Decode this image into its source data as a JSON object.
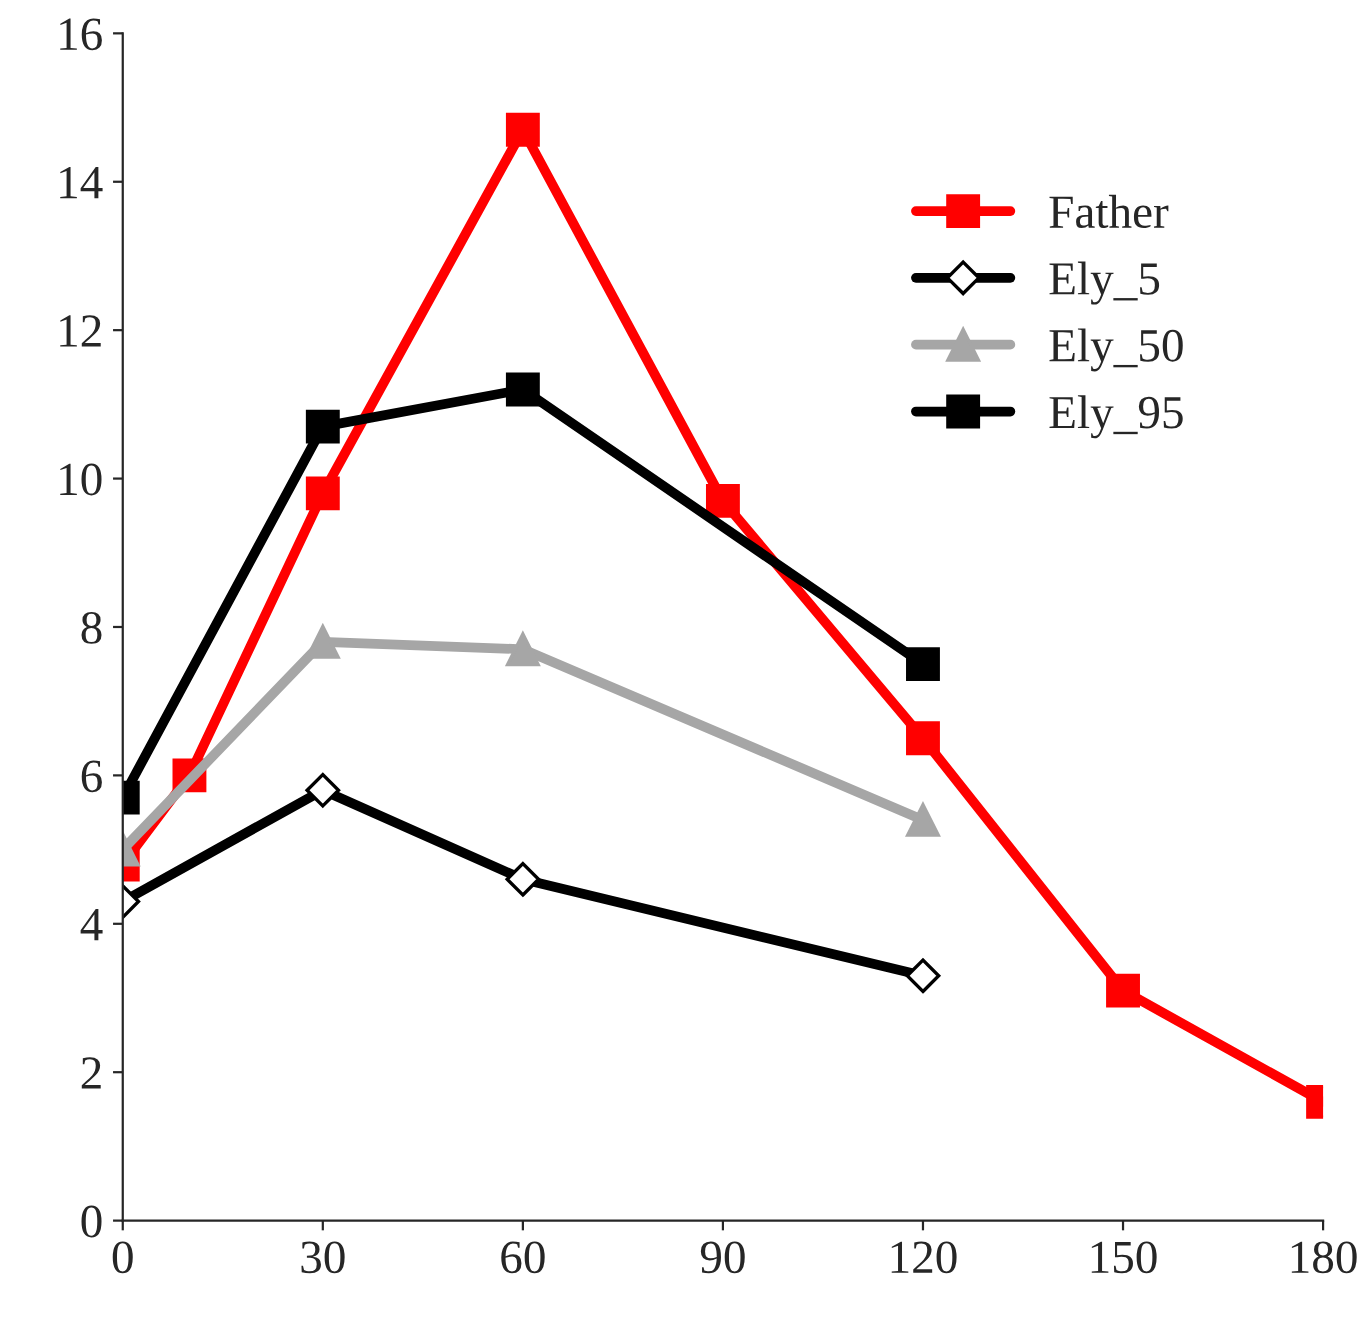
{
  "chart_data": {
    "type": "line",
    "xlim": [
      0,
      180
    ],
    "xticks": [
      0,
      30,
      60,
      90,
      120,
      150,
      180
    ],
    "ylim": [
      0,
      16
    ],
    "yticks": [
      0,
      2,
      4,
      6,
      8,
      10,
      12,
      14,
      16
    ],
    "grid": false,
    "legend": "top right",
    "line_style": "solid",
    "series": [
      {
        "name": "Father",
        "color": "#ff0000",
        "marker": "square",
        "x": [
          0,
          10,
          30,
          60,
          90,
          120,
          150,
          180
        ],
        "values": [
          4.8,
          6.0,
          9.8,
          14.7,
          9.7,
          6.5,
          3.1,
          1.6
        ]
      },
      {
        "name": "Ely_5",
        "color": "#000000",
        "marker": "diamond",
        "x": [
          0,
          30,
          60,
          120
        ],
        "values": [
          4.3,
          5.8,
          4.6,
          3.3
        ]
      },
      {
        "name": "Ely_50",
        "color": "#a6a6a6",
        "marker": "triangle",
        "x": [
          0,
          30,
          60,
          120
        ],
        "values": [
          5.0,
          7.8,
          7.7,
          5.4
        ]
      },
      {
        "name": "Ely_95",
        "color": "#000000",
        "marker": "square",
        "x": [
          0,
          30,
          60,
          120
        ],
        "values": [
          5.7,
          10.7,
          11.2,
          7.5
        ]
      }
    ]
  }
}
